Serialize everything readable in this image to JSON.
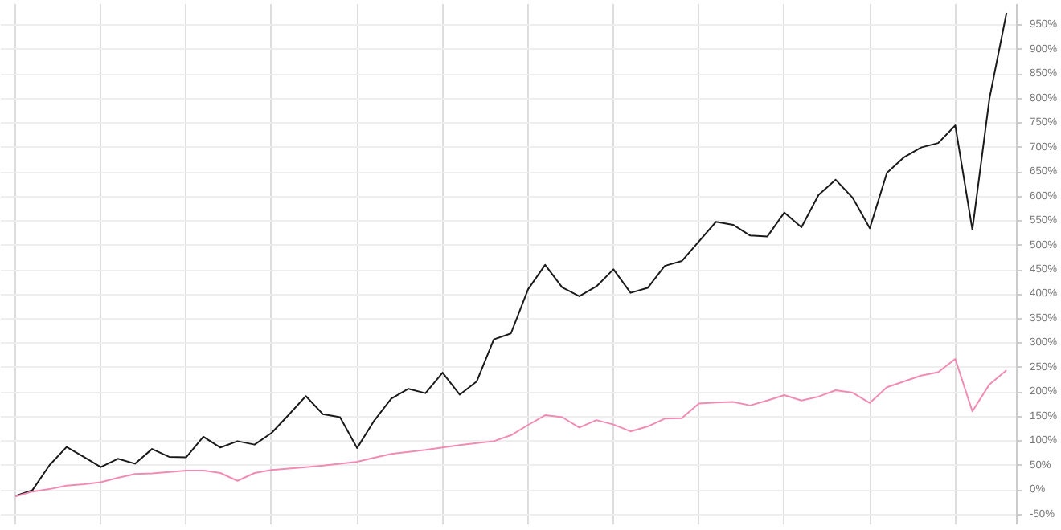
{
  "chart_data": {
    "type": "line",
    "ylim": [
      -70,
      993
    ],
    "categories": [
      null,
      null,
      null,
      null,
      null,
      null,
      null,
      null,
      null,
      null,
      null,
      null,
      null,
      null,
      null,
      null,
      null,
      null,
      null,
      null,
      null,
      null,
      null,
      null,
      null,
      null,
      null,
      null,
      null,
      null,
      null,
      null,
      null,
      null,
      null,
      null,
      null,
      null,
      null,
      null,
      null,
      null,
      null,
      null,
      null,
      null,
      null,
      null,
      null,
      null,
      null,
      null,
      null,
      null,
      null,
      null,
      null,
      null,
      null
    ],
    "yticks": [
      {
        "value": -50,
        "label": "-50%"
      },
      {
        "value": 0,
        "label": "0%"
      },
      {
        "value": 50,
        "label": "50%"
      },
      {
        "value": 100,
        "label": "100%"
      },
      {
        "value": 150,
        "label": "150%"
      },
      {
        "value": 200,
        "label": "200%"
      },
      {
        "value": 250,
        "label": "250%"
      },
      {
        "value": 300,
        "label": "300%"
      },
      {
        "value": 350,
        "label": "350%"
      },
      {
        "value": 400,
        "label": "400%"
      },
      {
        "value": 450,
        "label": "450%"
      },
      {
        "value": 500,
        "label": "500%"
      },
      {
        "value": 550,
        "label": "550%"
      },
      {
        "value": 600,
        "label": "600%"
      },
      {
        "value": 650,
        "label": "650%"
      },
      {
        "value": 700,
        "label": "700%"
      },
      {
        "value": 750,
        "label": "750%"
      },
      {
        "value": 800,
        "label": "800%"
      },
      {
        "value": 850,
        "label": "850%"
      },
      {
        "value": 900,
        "label": "900%"
      },
      {
        "value": 950,
        "label": "950%"
      }
    ],
    "tick_labels": "y",
    "grid": true,
    "line_style": "solid",
    "series": [
      {
        "color": "#1a1a1a",
        "values": [
          -12,
          0,
          51,
          88,
          68,
          47,
          64,
          54,
          84,
          68,
          67,
          109,
          87,
          100,
          93,
          117,
          154,
          192,
          155,
          149,
          86,
          142,
          187,
          207,
          198,
          240,
          195,
          222,
          308,
          320,
          410,
          460,
          414,
          396,
          416,
          451,
          403,
          413,
          458,
          468,
          508,
          548,
          542,
          520,
          518,
          567,
          537,
          603,
          634,
          597,
          535,
          648,
          680,
          700,
          709,
          745,
          532,
          800,
          975
        ]
      },
      {
        "color": "#f08cb4",
        "values": [
          -13,
          -3,
          2,
          9,
          12,
          16,
          25,
          33,
          34,
          37,
          40,
          40,
          35,
          19,
          35,
          41,
          44,
          47,
          50,
          54,
          58,
          66,
          74,
          78,
          82,
          87,
          92,
          96,
          100,
          112,
          133,
          153,
          149,
          128,
          143,
          134,
          120,
          130,
          146,
          147,
          177,
          179,
          180,
          173,
          183,
          194,
          183,
          191,
          204,
          199,
          178,
          210,
          222,
          234,
          241,
          268,
          161,
          216,
          245
        ]
      }
    ]
  }
}
